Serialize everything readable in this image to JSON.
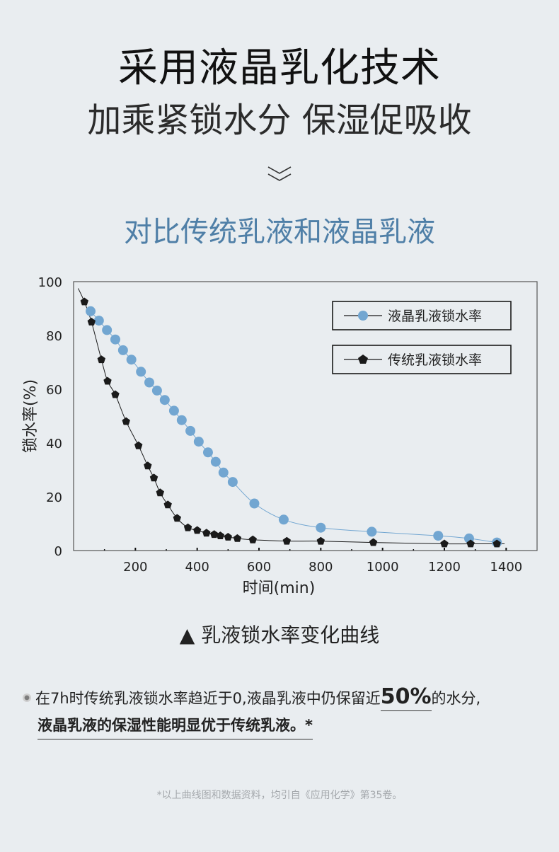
{
  "header": {
    "title_line1": "采用液晶乳化技术",
    "title_line2": "加乘紧锁水分 保湿促吸收"
  },
  "section": {
    "subtitle": "对比传统乳液和液晶乳液"
  },
  "caption": "▲ 乳液锁水率变化曲线",
  "note": {
    "line1_before": "在7h时传统乳液锁水率趋近于0,液晶乳液中仍保留近",
    "highlight": "50%",
    "line1_after": "的水分,",
    "line2": "液晶乳液的保湿性能明显优于传统乳液。*"
  },
  "footnote": "*以上曲线图和数据资料，均引自《应用化学》第35卷。",
  "colors": {
    "background": "#e9edf0",
    "accent": "#4f7fa7",
    "series_liquid_crystal": "#72a6d1",
    "series_traditional": "#1a1a1a"
  },
  "chart_data": {
    "type": "line",
    "title": "",
    "xlabel": "时间(min)",
    "ylabel": "锁水率(%)",
    "xlim": [
      0,
      1500
    ],
    "ylim": [
      0,
      100
    ],
    "xticks": [
      200,
      400,
      600,
      800,
      1000,
      1200,
      1400
    ],
    "yticks": [
      0,
      20,
      40,
      60,
      80,
      100
    ],
    "grid": false,
    "legend_position": "top-right",
    "series": [
      {
        "name": "液晶乳液锁水率",
        "marker": "circle",
        "color": "#72a6d1",
        "points": [
          [
            55,
            89
          ],
          [
            82,
            85.5
          ],
          [
            108,
            82
          ],
          [
            135,
            78.5
          ],
          [
            160,
            74.5
          ],
          [
            187,
            71
          ],
          [
            218,
            66.5
          ],
          [
            245,
            62.5
          ],
          [
            270,
            59.5
          ],
          [
            295,
            56
          ],
          [
            325,
            52
          ],
          [
            350,
            48.5
          ],
          [
            378,
            44.5
          ],
          [
            405,
            40.5
          ],
          [
            435,
            36.5
          ],
          [
            460,
            33
          ],
          [
            485,
            29
          ],
          [
            515,
            25.5
          ],
          [
            585,
            17.5
          ],
          [
            680,
            11.5
          ],
          [
            800,
            8.5
          ],
          [
            965,
            7
          ],
          [
            1180,
            5.5
          ],
          [
            1280,
            4.5
          ],
          [
            1370,
            3
          ]
        ]
      },
      {
        "name": "传统乳液锁水率",
        "marker": "pentagon",
        "color": "#1a1a1a",
        "points": [
          [
            35,
            92.5
          ],
          [
            58,
            85
          ],
          [
            90,
            71
          ],
          [
            110,
            63
          ],
          [
            135,
            58
          ],
          [
            170,
            48
          ],
          [
            210,
            39
          ],
          [
            240,
            31.5
          ],
          [
            260,
            27
          ],
          [
            280,
            21.5
          ],
          [
            305,
            17
          ],
          [
            335,
            12
          ],
          [
            370,
            8.5
          ],
          [
            400,
            7.5
          ],
          [
            430,
            6.5
          ],
          [
            455,
            6
          ],
          [
            475,
            5.5
          ],
          [
            500,
            5
          ],
          [
            530,
            4.5
          ],
          [
            580,
            4
          ],
          [
            690,
            3.5
          ],
          [
            800,
            3.5
          ],
          [
            970,
            3
          ],
          [
            1200,
            2.5
          ],
          [
            1285,
            2.5
          ],
          [
            1370,
            2.5
          ]
        ]
      }
    ]
  }
}
